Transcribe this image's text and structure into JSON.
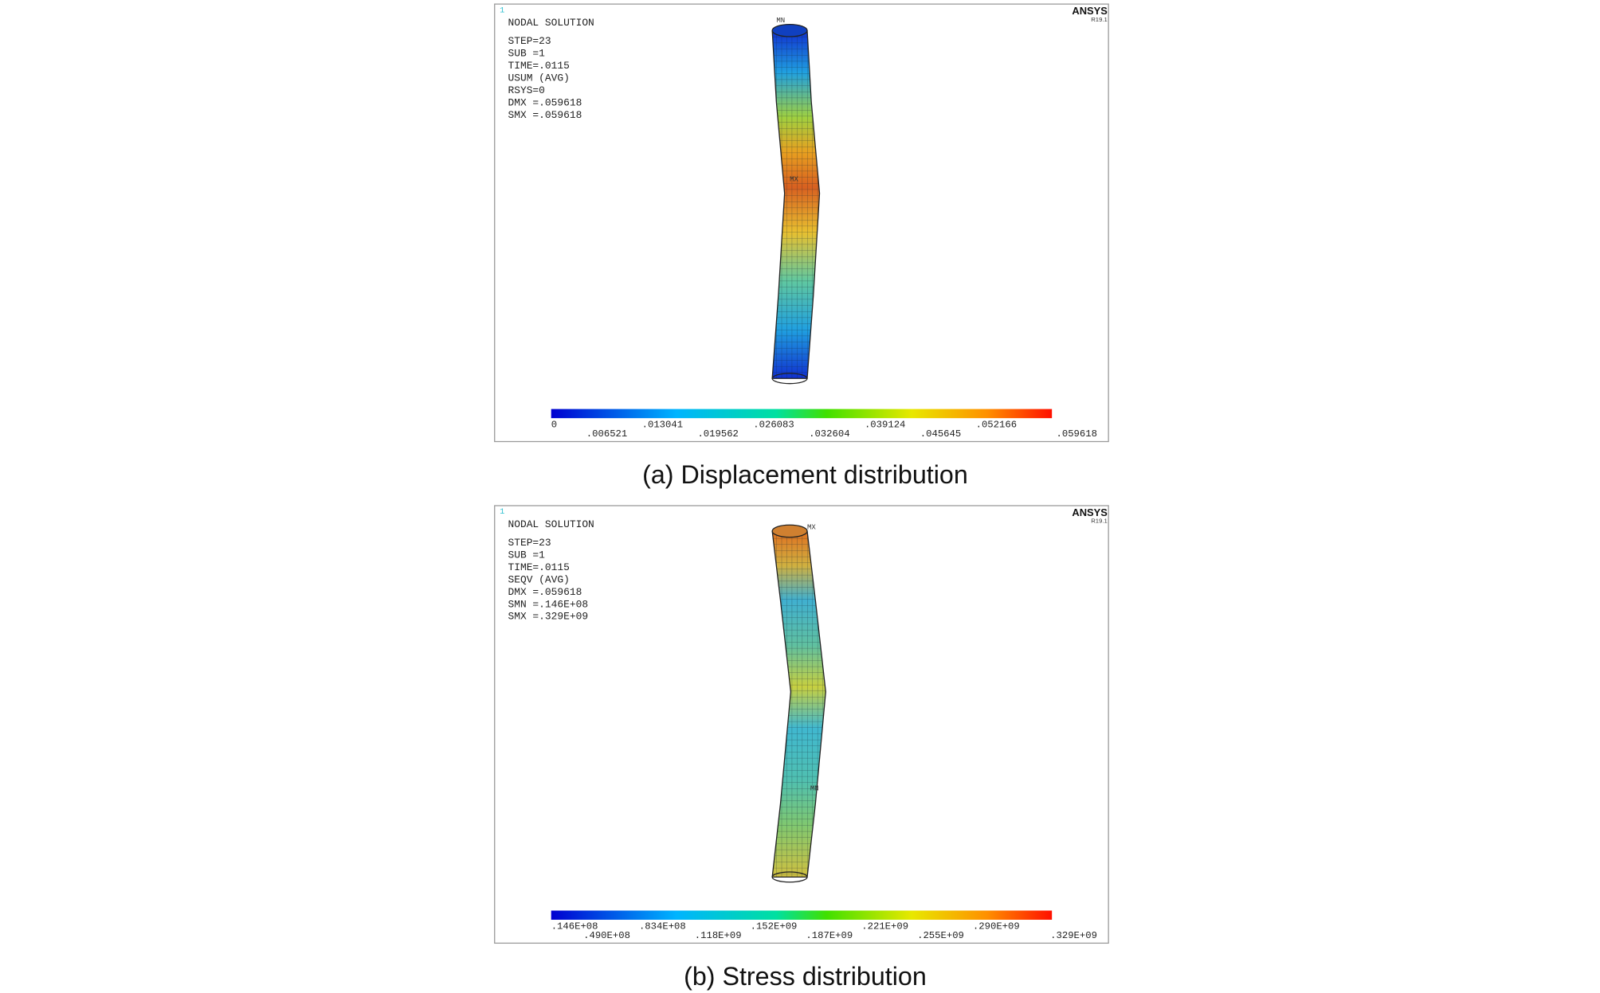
{
  "panels": [
    {
      "id_mark": "1",
      "brand": "ANSYS",
      "version": "R19.1",
      "info": [
        "NODAL SOLUTION",
        "STEP=23",
        "SUB =1",
        "TIME=.0115",
        "USUM      (AVG)",
        "RSYS=0",
        "DMX =.059618",
        "SMX =.059618"
      ],
      "legend": [
        "0",
        ".006521",
        ".013041",
        ".019562",
        ".026083",
        ".032604",
        ".039124",
        ".045645",
        ".052166",
        ".059618"
      ],
      "markers": [
        "MN",
        "MX"
      ],
      "caption": "(a) Displacement distribution"
    },
    {
      "id_mark": "1",
      "brand": "ANSYS",
      "version": "R19.1",
      "info": [
        "NODAL SOLUTION",
        "STEP=23",
        "SUB =1",
        "TIME=.0115",
        "SEQV      (AVG)",
        "DMX =.059618",
        "SMN =.146E+08",
        "SMX =.329E+09"
      ],
      "legend": [
        ".146E+08",
        ".490E+08",
        ".834E+08",
        ".118E+09",
        ".152E+09",
        ".187E+09",
        ".221E+09",
        ".255E+09",
        ".290E+09",
        ".329E+09"
      ],
      "markers": [
        "MX",
        "MN"
      ],
      "caption": "(b) Stress distribution"
    }
  ]
}
